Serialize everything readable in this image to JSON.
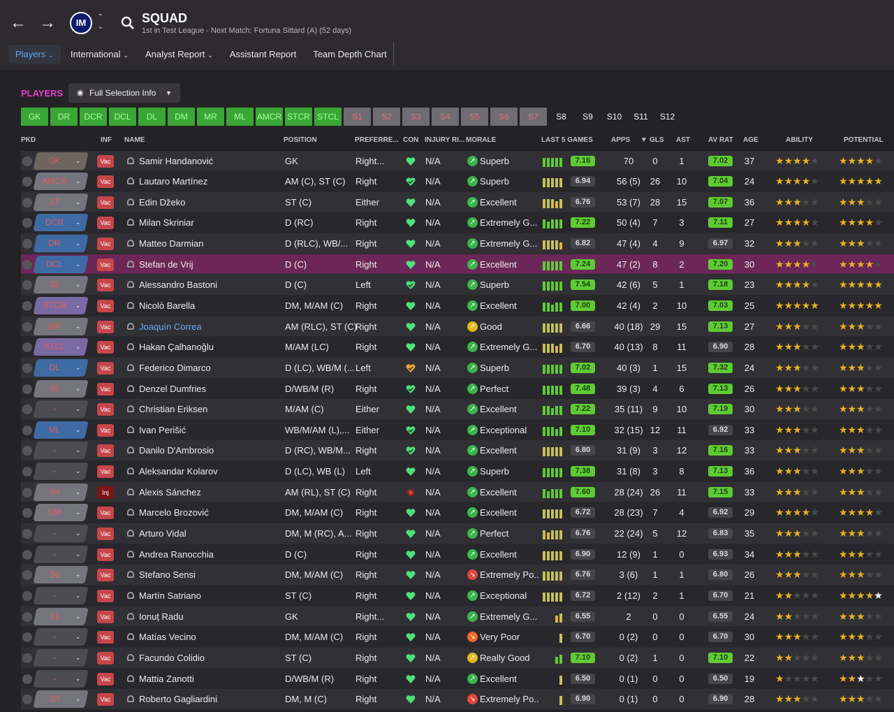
{
  "header": {
    "title": "SQUAD",
    "subtitle": "1st in Test League - Next Match: Fortuna Sittard (A) (52 days)",
    "club_badge_label": "IM"
  },
  "subnav": [
    {
      "label": "Players",
      "active": true,
      "caret": true
    },
    {
      "label": "International",
      "active": false,
      "caret": true
    },
    {
      "label": "Analyst Report",
      "active": false,
      "caret": true
    },
    {
      "label": "Assistant Report",
      "active": false,
      "caret": false
    },
    {
      "label": "Team Depth Chart",
      "active": false,
      "caret": false
    }
  ],
  "players_label": "PLAYERS",
  "view_select": "Full Selection Info",
  "position_buttons": [
    {
      "label": "GK",
      "state": "green"
    },
    {
      "label": "DR",
      "state": "green"
    },
    {
      "label": "DCR",
      "state": "green"
    },
    {
      "label": "DCL",
      "state": "green"
    },
    {
      "label": "DL",
      "state": "green"
    },
    {
      "label": "DM",
      "state": "green"
    },
    {
      "label": "MR",
      "state": "green"
    },
    {
      "label": "ML",
      "state": "green"
    },
    {
      "label": "AMCR",
      "state": "green"
    },
    {
      "label": "STCR",
      "state": "green"
    },
    {
      "label": "STCL",
      "state": "green"
    },
    {
      "label": "S1",
      "state": "red"
    },
    {
      "label": "S2",
      "state": "red"
    },
    {
      "label": "S3",
      "state": "red"
    },
    {
      "label": "S4",
      "state": "red"
    },
    {
      "label": "S5",
      "state": "red"
    },
    {
      "label": "S6",
      "state": "red"
    },
    {
      "label": "S7",
      "state": "red"
    },
    {
      "label": "S8",
      "state": "plain"
    },
    {
      "label": "S9",
      "state": "plain"
    },
    {
      "label": "S10",
      "state": "plain"
    },
    {
      "label": "S11",
      "state": "plain"
    },
    {
      "label": "S12",
      "state": "plain"
    }
  ],
  "columns": {
    "pkd": "PKD",
    "inf": "INF",
    "name": "NAME",
    "position": "POSITION",
    "preferred_foot": "PREFERRE...",
    "con": "CON",
    "injury": "INJURY RI...",
    "morale": "MORALE",
    "last5": "LAST 5 GAMES",
    "apps": "APPS",
    "gls": "GLS",
    "ast": "AST",
    "av_rat": "AV RAT",
    "age": "AGE",
    "ability": "ABILITY",
    "potential": "POTENTIAL"
  },
  "colors": {
    "accent": "#e040c9",
    "green": "#5fcb34",
    "selected_row": "#6c2758",
    "vac": "#c6464a",
    "inj": "#7b1414"
  },
  "players": [
    {
      "slot": "GK",
      "slot_color": "#6e665e",
      "inf": "Vac",
      "name": "Samir Handanović",
      "position": "GK",
      "foot": "Right...",
      "con": "heart",
      "inj": "N/A",
      "morale": "Superb",
      "morale_icon": "green",
      "bars": [
        3,
        3,
        3,
        3,
        3
      ],
      "last5": "7.16",
      "last5_hi": true,
      "apps": "70",
      "gls": "0",
      "ast": "1",
      "avrat": "7.02",
      "avrat_hi": true,
      "age": "37",
      "ability": 3.5,
      "potential": 3.5
    },
    {
      "slot": "AMCR",
      "slot_color": "#75757d",
      "inf": "Vac",
      "name": "Lautaro Martínez",
      "position": "AM (C), ST (C)",
      "foot": "Right",
      "con": "heart-tick",
      "inj": "N/A",
      "morale": "Superb",
      "morale_icon": "green",
      "bars": [
        3,
        3,
        3,
        3,
        3
      ],
      "last5": "6.94",
      "last5_hi": false,
      "apps": "56 (5)",
      "gls": "26",
      "ast": "10",
      "avrat": "7.04",
      "avrat_hi": true,
      "age": "24",
      "ability": 4,
      "potential": 4.5
    },
    {
      "slot": "S7",
      "slot_color": "#75757d",
      "inf": "Vac",
      "name": "Edin Džeko",
      "position": "ST (C)",
      "foot": "Either",
      "con": "heart",
      "inj": "N/A",
      "morale": "Excellent",
      "morale_icon": "green",
      "bars": [
        3,
        3,
        3,
        2,
        3
      ],
      "last5": "6.76",
      "last5_hi": false,
      "apps": "53 (7)",
      "gls": "28",
      "ast": "15",
      "avrat": "7.07",
      "avrat_hi": true,
      "age": "36",
      "ability": 3,
      "potential": 3
    },
    {
      "slot": "DCR",
      "slot_color": "#3f6ba4",
      "inf": "Vac",
      "name": "Milan Skriniar",
      "position": "D (RC)",
      "foot": "Right",
      "con": "heart",
      "inj": "N/A",
      "morale": "Extremely G...",
      "morale_icon": "green",
      "bars": [
        3,
        2,
        3,
        3,
        3
      ],
      "last5": "7.22",
      "last5_hi": true,
      "apps": "50 (4)",
      "gls": "7",
      "ast": "3",
      "avrat": "7.11",
      "avrat_hi": true,
      "age": "27",
      "ability": 4,
      "potential": 4
    },
    {
      "slot": "DR",
      "slot_color": "#3f6ba4",
      "inf": "Vac",
      "name": "Matteo Darmian",
      "position": "D (RLC), WB/...",
      "foot": "Right",
      "con": "heart",
      "inj": "N/A",
      "morale": "Extremely G...",
      "morale_icon": "green",
      "bars": [
        3,
        3,
        3,
        3,
        2
      ],
      "last5": "6.82",
      "last5_hi": false,
      "apps": "47 (4)",
      "gls": "4",
      "ast": "9",
      "avrat": "6.97",
      "avrat_hi": false,
      "age": "32",
      "ability": 2.5,
      "potential": 2.5
    },
    {
      "slot": "DCL",
      "slot_color": "#3f6ba4",
      "inf": "Vac",
      "name": "Stefan de Vrij",
      "position": "D (C)",
      "foot": "Right",
      "con": "heart",
      "inj": "N/A",
      "morale": "Excellent",
      "morale_icon": "green",
      "bars": [
        3,
        3,
        3,
        3,
        3
      ],
      "last5": "7.24",
      "last5_hi": true,
      "apps": "47 (2)",
      "gls": "8",
      "ast": "2",
      "avrat": "7.20",
      "avrat_hi": true,
      "age": "30",
      "ability": 4,
      "potential": 4,
      "selected": true
    },
    {
      "slot": "S2",
      "slot_color": "#75757d",
      "inf": "Vac",
      "name": "Alessandro Bastoni",
      "position": "D (C)",
      "foot": "Left",
      "con": "heart-tick",
      "inj": "N/A",
      "morale": "Superb",
      "morale_icon": "green",
      "bars": [
        3,
        3,
        3,
        3,
        3
      ],
      "last5": "7.54",
      "last5_hi": true,
      "apps": "42 (6)",
      "gls": "5",
      "ast": "1",
      "avrat": "7.18",
      "avrat_hi": true,
      "age": "23",
      "ability": 4,
      "potential": 4.5
    },
    {
      "slot": "STCR",
      "slot_color": "#7a6aa3",
      "inf": "Vac",
      "name": "Nicolò Barella",
      "position": "DM, M/AM (C)",
      "foot": "Right",
      "con": "heart",
      "inj": "N/A",
      "morale": "Excellent",
      "morale_icon": "green",
      "bars": [
        3,
        3,
        2,
        3,
        3
      ],
      "last5": "7.00",
      "last5_hi": true,
      "apps": "42 (4)",
      "gls": "2",
      "ast": "10",
      "avrat": "7.03",
      "avrat_hi": true,
      "age": "25",
      "ability": 4.5,
      "potential": 4.5
    },
    {
      "slot": "MR",
      "slot_color": "#75757d",
      "inf": "Vac",
      "name": "Joaquín Correa",
      "position": "AM (RLC), ST (C)",
      "foot": "Right",
      "con": "heart",
      "inj": "N/A",
      "morale": "Good",
      "morale_icon": "yellow",
      "bars": [
        3,
        3,
        3,
        3,
        3
      ],
      "last5": "6.66",
      "last5_hi": false,
      "apps": "40 (18)",
      "gls": "29",
      "ast": "15",
      "avrat": "7.13",
      "avrat_hi": true,
      "age": "27",
      "ability": 3,
      "potential": 3,
      "link": true
    },
    {
      "slot": "STCL",
      "slot_color": "#7a6aa3",
      "inf": "Vac",
      "name": "Hakan Çalhanoğlu",
      "position": "M/AM (LC)",
      "foot": "Right",
      "con": "heart",
      "inj": "N/A",
      "morale": "Extremely G...",
      "morale_icon": "green",
      "bars": [
        3,
        3,
        3,
        2,
        3
      ],
      "last5": "6.70",
      "last5_hi": false,
      "apps": "40 (13)",
      "gls": "8",
      "ast": "11",
      "avrat": "6.90",
      "avrat_hi": false,
      "age": "28",
      "ability": 3,
      "potential": 3
    },
    {
      "slot": "DL",
      "slot_color": "#3f6ba4",
      "inf": "Vac",
      "name": "Federico Dimarco",
      "position": "D (LC), WB/M (...",
      "foot": "Left",
      "con": "heart-orange",
      "inj": "N/A",
      "morale": "Superb",
      "morale_icon": "green",
      "bars": [
        3,
        3,
        3,
        3,
        3
      ],
      "last5": "7.02",
      "last5_hi": true,
      "apps": "40 (3)",
      "gls": "1",
      "ast": "15",
      "avrat": "7.32",
      "avrat_hi": true,
      "age": "24",
      "ability": 2.5,
      "potential": 3
    },
    {
      "slot": "S5",
      "slot_color": "#75757d",
      "inf": "Vac",
      "name": "Denzel Dumfries",
      "position": "D/WB/M (R)",
      "foot": "Right",
      "con": "heart-tick",
      "inj": "N/A",
      "morale": "Perfect",
      "morale_icon": "green",
      "bars": [
        3,
        3,
        3,
        3,
        3
      ],
      "last5": "7.48",
      "last5_hi": true,
      "apps": "39 (3)",
      "gls": "4",
      "ast": "6",
      "avrat": "7.13",
      "avrat_hi": true,
      "age": "26",
      "ability": 3,
      "potential": 3
    },
    {
      "slot": "-",
      "slot_color": "#4d4c52",
      "inf": "Vac",
      "name": "Christian Eriksen",
      "position": "M/AM (C)",
      "foot": "Either",
      "con": "heart",
      "inj": "N/A",
      "morale": "Excellent",
      "morale_icon": "green",
      "bars": [
        3,
        3,
        2,
        3,
        3
      ],
      "last5": "7.22",
      "last5_hi": true,
      "apps": "35 (11)",
      "gls": "9",
      "ast": "10",
      "avrat": "7.19",
      "avrat_hi": true,
      "age": "30",
      "ability": 3,
      "potential": 3
    },
    {
      "slot": "ML",
      "slot_color": "#3f6ba4",
      "inf": "Vac",
      "name": "Ivan Perišić",
      "position": "WB/M/AM (L),...",
      "foot": "Either",
      "con": "heart-tick",
      "inj": "N/A",
      "morale": "Exceptional",
      "morale_icon": "green",
      "bars": [
        3,
        3,
        3,
        2,
        3
      ],
      "last5": "7.10",
      "last5_hi": true,
      "apps": "32 (15)",
      "gls": "12",
      "ast": "11",
      "avrat": "6.92",
      "avrat_hi": false,
      "age": "33",
      "ability": 3,
      "potential": 3
    },
    {
      "slot": "-",
      "slot_color": "#4d4c52",
      "inf": "Vac",
      "name": "Danilo D'Ambrosio",
      "position": "D (RC), WB/M...",
      "foot": "Right",
      "con": "heart-tick",
      "inj": "N/A",
      "morale": "Excellent",
      "morale_icon": "green",
      "bars": [
        3,
        3,
        3,
        3,
        3
      ],
      "last5": "6.80",
      "last5_hi": false,
      "apps": "31 (9)",
      "gls": "3",
      "ast": "12",
      "avrat": "7.16",
      "avrat_hi": true,
      "age": "33",
      "ability": 2.5,
      "potential": 2.5
    },
    {
      "slot": "-",
      "slot_color": "#4d4c52",
      "inf": "Vac",
      "name": "Aleksandar Kolarov",
      "position": "D (LC), WB (L)",
      "foot": "Left",
      "con": "heart",
      "inj": "N/A",
      "morale": "Superb",
      "morale_icon": "green",
      "bars": [
        3,
        3,
        3,
        3,
        3
      ],
      "last5": "7.38",
      "last5_hi": true,
      "apps": "31 (8)",
      "gls": "3",
      "ast": "8",
      "avrat": "7.13",
      "avrat_hi": true,
      "age": "36",
      "ability": 2.5,
      "potential": 2.5
    },
    {
      "slot": "S4",
      "slot_color": "#75757d",
      "inf": "Inj",
      "name": "Alexis Sánchez",
      "position": "AM (RL), ST (C)",
      "foot": "Right",
      "con": "injured",
      "inj": "N/A",
      "morale": "Excellent",
      "morale_icon": "green",
      "bars": [
        3,
        2,
        3,
        3,
        3
      ],
      "last5": "7.60",
      "last5_hi": true,
      "apps": "28 (24)",
      "gls": "26",
      "ast": "11",
      "avrat": "7.15",
      "avrat_hi": true,
      "age": "33",
      "ability": 2.5,
      "potential": 2.5
    },
    {
      "slot": "DM",
      "slot_color": "#75757d",
      "inf": "Vac",
      "name": "Marcelo Brozović",
      "position": "DM, M/AM (C)",
      "foot": "Right",
      "con": "heart",
      "inj": "N/A",
      "morale": "Excellent",
      "morale_icon": "green",
      "bars": [
        3,
        3,
        3,
        3,
        3
      ],
      "last5": "6.72",
      "last5_hi": false,
      "apps": "28 (23)",
      "gls": "7",
      "ast": "4",
      "avrat": "6.92",
      "avrat_hi": false,
      "age": "29",
      "ability": 3.5,
      "potential": 3.5
    },
    {
      "slot": "-",
      "slot_color": "#4d4c52",
      "inf": "Vac",
      "name": "Arturo Vidal",
      "position": "DM, M (RC), A...",
      "foot": "Right",
      "con": "heart",
      "inj": "N/A",
      "morale": "Perfect",
      "morale_icon": "green",
      "bars": [
        3,
        2,
        3,
        3,
        3
      ],
      "last5": "6.76",
      "last5_hi": false,
      "apps": "22 (24)",
      "gls": "5",
      "ast": "12",
      "avrat": "6.83",
      "avrat_hi": false,
      "age": "35",
      "ability": 2.5,
      "potential": 2.5
    },
    {
      "slot": "-",
      "slot_color": "#4d4c52",
      "inf": "Vac",
      "name": "Andrea Ranocchia",
      "position": "D (C)",
      "foot": "Right",
      "con": "heart",
      "inj": "N/A",
      "morale": "Excellent",
      "morale_icon": "green",
      "bars": [
        3,
        3,
        3,
        3,
        3
      ],
      "last5": "6.90",
      "last5_hi": false,
      "apps": "12 (9)",
      "gls": "1",
      "ast": "0",
      "avrat": "6.93",
      "avrat_hi": false,
      "age": "34",
      "ability": 2.5,
      "potential": 2.5
    },
    {
      "slot": "S6",
      "slot_color": "#75757d",
      "inf": "Vac",
      "name": "Stefano Sensi",
      "position": "DM, M/AM (C)",
      "foot": "Right",
      "con": "heart",
      "inj": "N/A",
      "morale": "Extremely Po...",
      "morale_icon": "red",
      "bars": [
        3,
        3,
        3,
        3,
        3
      ],
      "last5": "6.76",
      "last5_hi": false,
      "apps": "3 (6)",
      "gls": "1",
      "ast": "1",
      "avrat": "6.80",
      "avrat_hi": false,
      "age": "26",
      "ability": 2.5,
      "potential": 3
    },
    {
      "slot": "-",
      "slot_color": "#4d4c52",
      "inf": "Vac",
      "name": "Martín Satriano",
      "position": "ST (C)",
      "foot": "Right",
      "con": "heart",
      "inj": "N/A",
      "morale": "Exceptional",
      "morale_icon": "green",
      "bars": [
        3,
        3,
        3,
        3,
        3
      ],
      "last5": "6.72",
      "last5_hi": false,
      "apps": "2 (12)",
      "gls": "2",
      "ast": "1",
      "avrat": "6.70",
      "avrat_hi": false,
      "age": "21",
      "ability": 2,
      "potential": 4,
      "potential_white": true
    },
    {
      "slot": "S1",
      "slot_color": "#75757d",
      "inf": "Vac",
      "name": "Ionuț Radu",
      "position": "GK",
      "foot": "Right...",
      "con": "heart",
      "inj": "N/A",
      "morale": "Extremely G...",
      "morale_icon": "green",
      "bars": [
        0,
        0,
        0,
        2,
        3
      ],
      "last5": "6.55",
      "last5_hi": false,
      "apps": "2",
      "gls": "0",
      "ast": "0",
      "avrat": "6.55",
      "avrat_hi": false,
      "age": "24",
      "ability": 2,
      "potential": 2.5
    },
    {
      "slot": "-",
      "slot_color": "#4d4c52",
      "inf": "Vac",
      "name": "Matías Vecino",
      "position": "DM, M/AM (C)",
      "foot": "Right",
      "con": "heart",
      "inj": "N/A",
      "morale": "Very Poor",
      "morale_icon": "orange",
      "bars": [
        0,
        0,
        0,
        0,
        3
      ],
      "last5": "6.70",
      "last5_hi": false,
      "apps": "0 (2)",
      "gls": "0",
      "ast": "0",
      "avrat": "6.70",
      "avrat_hi": false,
      "age": "30",
      "ability": 2.5,
      "potential": 2.5
    },
    {
      "slot": "-",
      "slot_color": "#4d4c52",
      "inf": "Vac",
      "name": "Facundo Colidio",
      "position": "ST (C)",
      "foot": "Right",
      "con": "heart",
      "inj": "N/A",
      "morale": "Really Good",
      "morale_icon": "yellow",
      "bars": [
        0,
        0,
        0,
        2,
        3
      ],
      "last5": "7.10",
      "last5_hi": true,
      "apps": "0 (2)",
      "gls": "1",
      "ast": "0",
      "avrat": "7.10",
      "avrat_hi": true,
      "age": "22",
      "ability": 2,
      "potential": 2.5
    },
    {
      "slot": "-",
      "slot_color": "#4d4c52",
      "inf": "Vac",
      "name": "Mattia Zanotti",
      "position": "D/WB/M (R)",
      "foot": "Right",
      "con": "heart",
      "inj": "N/A",
      "morale": "Excellent",
      "morale_icon": "green",
      "bars": [
        0,
        0,
        0,
        0,
        3
      ],
      "last5": "6.50",
      "last5_hi": false,
      "apps": "0 (1)",
      "gls": "0",
      "ast": "0",
      "avrat": "6.50",
      "avrat_hi": false,
      "age": "19",
      "ability": 1,
      "potential": 2,
      "potential_white": true
    },
    {
      "slot": "S3",
      "slot_color": "#75757d",
      "inf": "Vac",
      "name": "Roberto Gagliardini",
      "position": "DM, M (C)",
      "foot": "Right",
      "con": "heart",
      "inj": "N/A",
      "morale": "Extremely Po...",
      "morale_icon": "red",
      "bars": [
        0,
        0,
        0,
        0,
        3
      ],
      "last5": "6.90",
      "last5_hi": false,
      "apps": "0 (1)",
      "gls": "0",
      "ast": "0",
      "avrat": "6.90",
      "avrat_hi": false,
      "age": "28",
      "ability": 2.5,
      "potential": 2.5
    }
  ]
}
